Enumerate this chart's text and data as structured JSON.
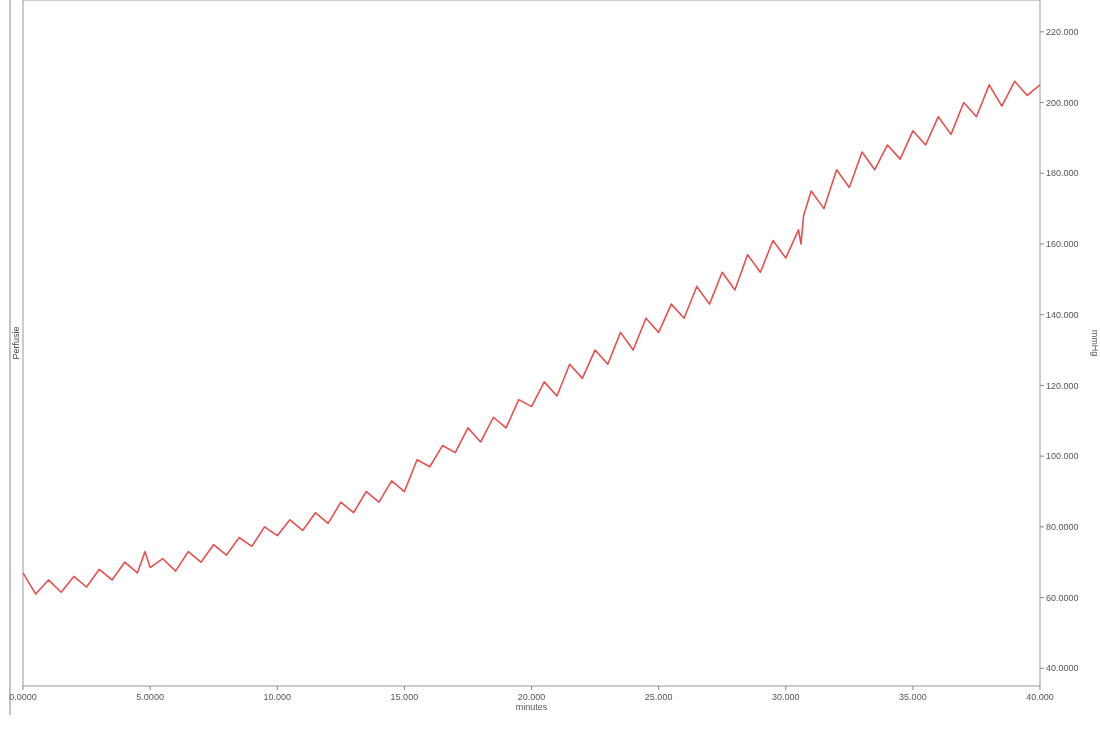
{
  "chart_data": {
    "type": "line",
    "xlabel": "minutes",
    "ylabel": "Perfusie",
    "y2label": "mmHg",
    "xlim": [
      0,
      40
    ],
    "xticks": [
      {
        "value": 0,
        "label": "0.0000"
      },
      {
        "value": 5,
        "label": "5.0000"
      },
      {
        "value": 10,
        "label": "10.000"
      },
      {
        "value": 15,
        "label": "15.000"
      },
      {
        "value": 20,
        "label": "20.000"
      },
      {
        "value": 25,
        "label": "25.000"
      },
      {
        "value": 30,
        "label": "30.000"
      },
      {
        "value": 35,
        "label": "35.000"
      },
      {
        "value": 40,
        "label": "40.000"
      }
    ],
    "y2lim": [
      35,
      229
    ],
    "y2ticks": [
      {
        "value": 40,
        "label": "40.0000"
      },
      {
        "value": 60,
        "label": "60.0000"
      },
      {
        "value": 80,
        "label": "80.0000"
      },
      {
        "value": 100,
        "label": "100.000"
      },
      {
        "value": 120,
        "label": "120.000"
      },
      {
        "value": 140,
        "label": "140.000"
      },
      {
        "value": 160,
        "label": "160.000"
      },
      {
        "value": 180,
        "label": "180.000"
      },
      {
        "value": 200,
        "label": "200.000"
      },
      {
        "value": 220,
        "label": "220.000"
      }
    ],
    "grid": false,
    "marker": "none",
    "line_style": "solid",
    "series": [
      {
        "axis": "y2",
        "color": "#e8504f",
        "x": [
          0,
          0.5,
          1,
          1.5,
          2,
          2.5,
          3,
          3.5,
          4,
          4.5,
          4.8,
          5,
          5.5,
          6,
          6.5,
          7,
          7.5,
          8,
          8.5,
          9,
          9.5,
          10,
          10.5,
          11,
          11.5,
          12,
          12.5,
          13,
          13.5,
          14,
          14.5,
          15,
          15.5,
          16,
          16.5,
          17,
          17.5,
          18,
          18.5,
          19,
          19.5,
          20,
          20.5,
          21,
          21.5,
          22,
          22.5,
          23,
          23.5,
          24,
          24.5,
          25,
          25.5,
          26,
          26.5,
          27,
          27.5,
          28,
          28.5,
          29,
          29.5,
          30,
          30.5,
          30.6,
          30.7,
          31,
          31.5,
          32,
          32.5,
          33,
          33.5,
          34,
          34.5,
          35,
          35.5,
          36,
          36.5,
          37,
          37.5,
          38,
          38.5,
          39,
          39.5,
          40
        ],
        "values": [
          67,
          61,
          65,
          61.5,
          66,
          63,
          68,
          65,
          70,
          67,
          73,
          68.5,
          71,
          67.5,
          73,
          70,
          75,
          72,
          77,
          74.5,
          80,
          77.5,
          82,
          79,
          84,
          81,
          87,
          84,
          90,
          87,
          93,
          90,
          99,
          97,
          103,
          101,
          108,
          104,
          111,
          108,
          116,
          114,
          121,
          117,
          126,
          122,
          130,
          126,
          135,
          130,
          139,
          135,
          143,
          139,
          148,
          143,
          152,
          147,
          157,
          152,
          161,
          156,
          164,
          160,
          168,
          175,
          170,
          181,
          176,
          186,
          181,
          188,
          184,
          192,
          188,
          196,
          191,
          200,
          196,
          205,
          199,
          206,
          202,
          205
        ]
      }
    ]
  }
}
